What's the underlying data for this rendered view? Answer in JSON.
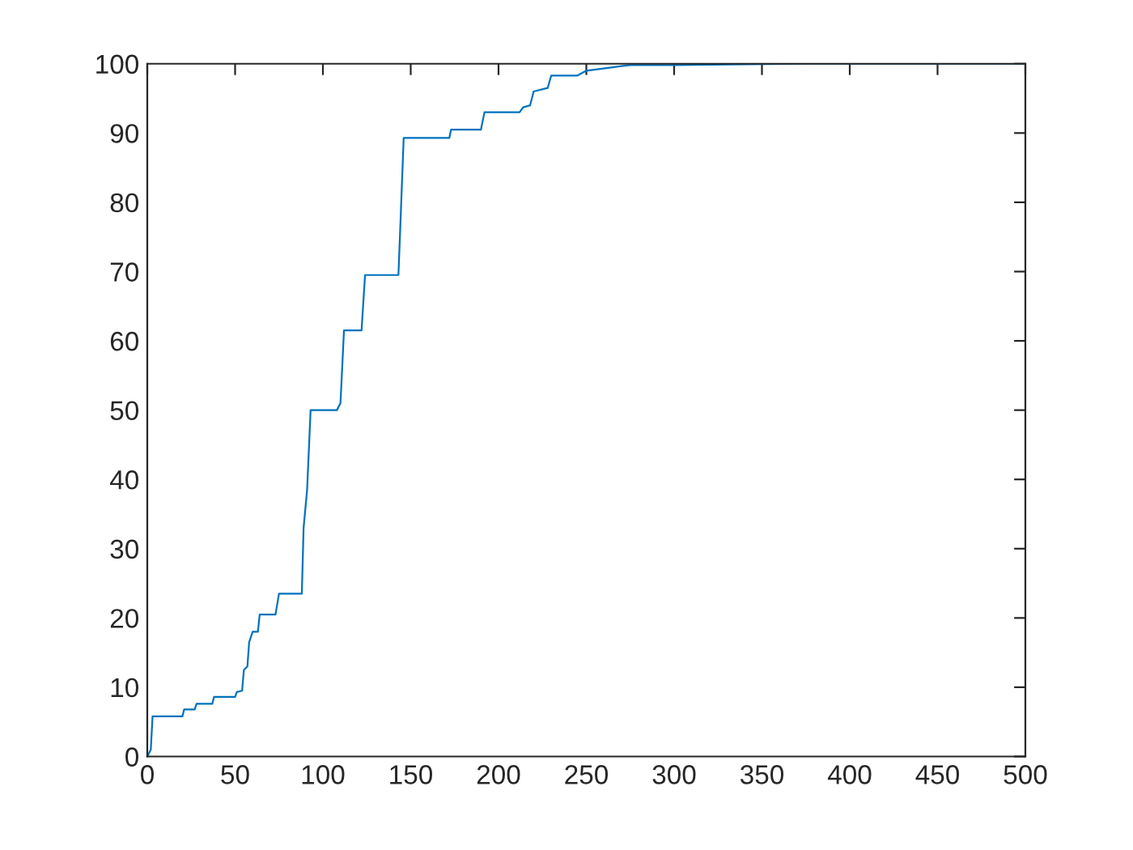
{
  "chart_data": {
    "type": "line",
    "xlim": [
      0,
      500
    ],
    "ylim": [
      0,
      100
    ],
    "xticks": [
      0,
      50,
      100,
      150,
      200,
      250,
      300,
      350,
      400,
      450,
      500
    ],
    "yticks": [
      0,
      10,
      20,
      30,
      40,
      50,
      60,
      70,
      80,
      90,
      100
    ],
    "grid": false,
    "series": [
      {
        "color": "#0072bd",
        "x": [
          0,
          2,
          3,
          20,
          21,
          27,
          28,
          37,
          38,
          50,
          51,
          54,
          55,
          57,
          58,
          60,
          63,
          64,
          73,
          75,
          88,
          89,
          91,
          93,
          108,
          110,
          112,
          122,
          124,
          143,
          144,
          146,
          172,
          173,
          190,
          192,
          212,
          214,
          218,
          220,
          228,
          230,
          245,
          250,
          265,
          275,
          300,
          375,
          500
        ],
        "values": [
          0,
          1,
          5.8,
          5.8,
          6.8,
          6.8,
          7.6,
          7.6,
          8.6,
          8.6,
          9.3,
          9.5,
          12.5,
          13,
          16.5,
          18,
          18,
          20.5,
          20.5,
          23.5,
          23.5,
          33,
          38.5,
          50,
          50,
          51,
          61.5,
          61.5,
          69.5,
          69.5,
          76,
          89.3,
          89.3,
          90.5,
          90.5,
          93,
          93,
          93.7,
          94,
          96,
          96.5,
          98.3,
          98.3,
          99,
          99.5,
          99.8,
          99.8,
          100,
          100
        ]
      }
    ]
  }
}
